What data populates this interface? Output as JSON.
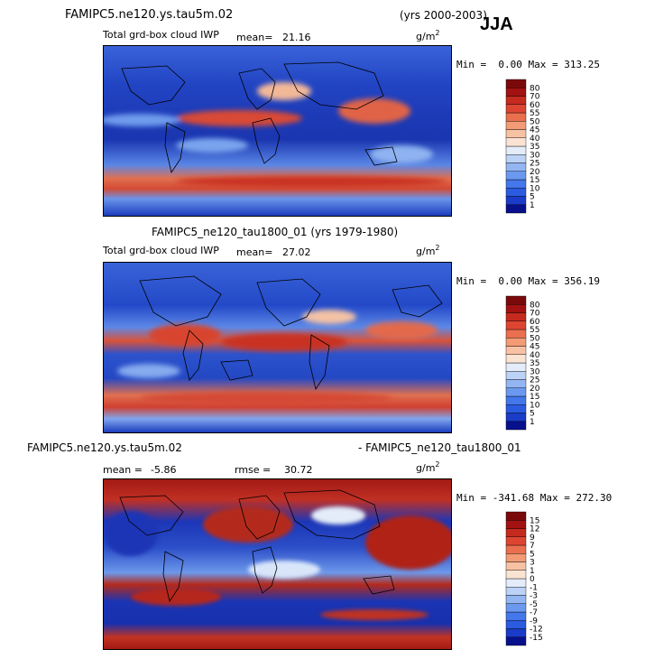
{
  "season": "JJA",
  "panels": [
    {
      "case_title": "FAMIPC5.ne120.ys.tau5m.02",
      "years": "(yrs 2000-2003)",
      "variable": "Total grd-box cloud IWP",
      "mean_label": "mean=",
      "mean_value": "21.16",
      "units_base": "g/m",
      "units_exp": "2",
      "min_label": "Min =",
      "min_value": "0.00",
      "max_label": "Max =",
      "max_value": "313.25"
    },
    {
      "case_title": "FAMIPC5_ne120_tau1800_01 (yrs 1979-1980)",
      "variable": "Total grd-box cloud IWP",
      "mean_label": "mean=",
      "mean_value": "27.02",
      "units_base": "g/m",
      "units_exp": "2",
      "min_label": "Min =",
      "min_value": "0.00",
      "max_label": "Max =",
      "max_value": "356.19"
    },
    {
      "case_left": "FAMIPC5.ne120.ys.tau5m.02",
      "case_right": "- FAMIPC5_ne120_tau1800_01",
      "mean_label": "mean =",
      "mean_value": "-5.86",
      "rmse_label": "rmse =",
      "rmse_value": "30.72",
      "units_base": "g/m",
      "units_exp": "2",
      "min_label": "Min =",
      "min_value": "-341.68",
      "max_label": "Max =",
      "max_value": "272.30"
    }
  ],
  "chart_data": [
    {
      "type": "heatmap",
      "title": "Total grd-box cloud IWP",
      "subtitle": "FAMIPC5.ne120.ys.tau5m.02 (yrs 2000-2003)",
      "units": "g/m2",
      "mean": 21.16,
      "min": 0.0,
      "max": 313.25,
      "colorbar_levels": [
        "1",
        "5",
        "10",
        "15",
        "20",
        "25",
        "30",
        "35",
        "40",
        "45",
        "50",
        "55",
        "60",
        "70",
        "80"
      ],
      "colorbar_colors": [
        "#08108c",
        "#1a3cc8",
        "#2a5be0",
        "#4377ea",
        "#6a99ef",
        "#93b6f3",
        "#bcd2f6",
        "#e3ecf8",
        "#fbe3d4",
        "#f7c2a4",
        "#f29b75",
        "#ea6f4f",
        "#dc4532",
        "#c52a1e",
        "#a21212",
        "#7a0a0a"
      ]
    },
    {
      "type": "heatmap",
      "title": "Total grd-box cloud IWP",
      "subtitle": "FAMIPC5_ne120_tau1800_01 (yrs 1979-1980)",
      "units": "g/m2",
      "mean": 27.02,
      "min": 0.0,
      "max": 356.19,
      "colorbar_levels": [
        "1",
        "5",
        "10",
        "15",
        "20",
        "25",
        "30",
        "35",
        "40",
        "45",
        "50",
        "55",
        "60",
        "70",
        "80"
      ],
      "colorbar_colors": [
        "#08108c",
        "#1a3cc8",
        "#2a5be0",
        "#4377ea",
        "#6a99ef",
        "#93b6f3",
        "#bcd2f6",
        "#e3ecf8",
        "#fbe3d4",
        "#f7c2a4",
        "#f29b75",
        "#ea6f4f",
        "#dc4532",
        "#c52a1e",
        "#a21212",
        "#7a0a0a"
      ]
    },
    {
      "type": "heatmap",
      "title": "FAMIPC5.ne120.ys.tau5m.02 - FAMIPC5_ne120_tau1800_01",
      "units": "g/m2",
      "mean": -5.86,
      "rmse": 30.72,
      "min": -341.68,
      "max": 272.3,
      "colorbar_levels": [
        "-15",
        "-12",
        "-9",
        "-7",
        "-5",
        "-3",
        "-1",
        "0",
        "1",
        "3",
        "5",
        "7",
        "9",
        "12",
        "15"
      ],
      "colorbar_colors": [
        "#08108c",
        "#1a3cc8",
        "#2a5be0",
        "#4377ea",
        "#6a99ef",
        "#93b6f3",
        "#bcd2f6",
        "#e3ecf8",
        "#fbe3d4",
        "#f7c2a4",
        "#f29b75",
        "#ea6f4f",
        "#dc4532",
        "#c52a1e",
        "#a21212",
        "#7a0a0a"
      ]
    }
  ]
}
